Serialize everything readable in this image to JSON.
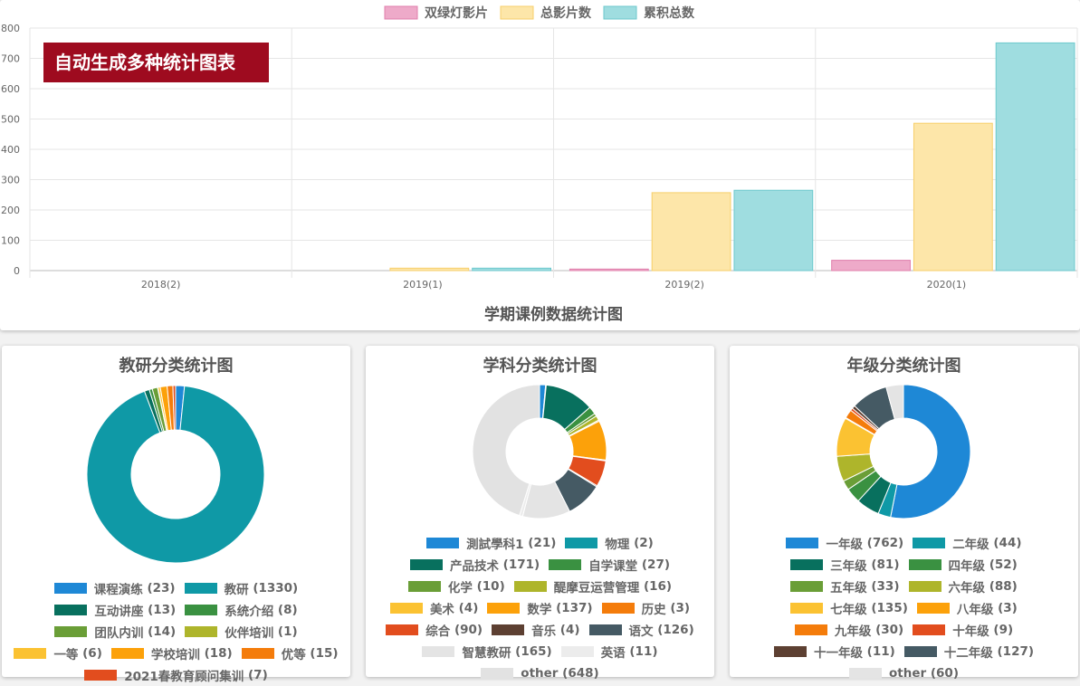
{
  "badge": "自动生成多种统计图表",
  "chart_data": [
    {
      "type": "bar",
      "title": "学期课例数据统计图",
      "categories": [
        "2018(2)",
        "2019(1)",
        "2019(2)",
        "2020(1)"
      ],
      "series": [
        {
          "name": "双绿灯影片",
          "color": "#eeaac9",
          "border": "#e07fac",
          "values": [
            0,
            0,
            5,
            34
          ]
        },
        {
          "name": "总影片数",
          "color": "#fde6a9",
          "border": "#f7cf6a",
          "values": [
            0,
            8,
            257,
            486
          ]
        },
        {
          "name": "累积总数",
          "color": "#9fdde0",
          "border": "#6cc8cd",
          "values": [
            0,
            8,
            265,
            751
          ]
        }
      ],
      "ylim": [
        0,
        800
      ],
      "yticks": [
        0,
        100,
        200,
        300,
        400,
        500,
        600,
        700,
        800
      ],
      "grid": true
    },
    {
      "type": "donut",
      "title": "教研分类统计图",
      "categories": [
        "课程演练",
        "教研",
        "互动讲座",
        "系统介绍",
        "团队内训",
        "伙伴培训",
        "一等",
        "学校培训",
        "优等",
        "2021春教育顾问集训"
      ],
      "values": [
        23,
        1330,
        13,
        8,
        14,
        1,
        6,
        18,
        15,
        7
      ],
      "value_labels": [
        "(23)",
        "(1330)",
        "(13)",
        "(8)",
        "(14)",
        "(1)",
        "(6)",
        "(18)",
        "(15)",
        "(7)"
      ],
      "colors": [
        "#1e88d6",
        "#0f99a6",
        "#08705e",
        "#3a9141",
        "#6a9e37",
        "#aeb52b",
        "#fbc232",
        "#fca10a",
        "#f47c0b",
        "#e24d1e"
      ]
    },
    {
      "type": "donut",
      "title": "学科分类统计图",
      "categories": [
        "測試學科1",
        "物理",
        "产品技术",
        "自学课堂",
        "化学",
        "醍摩豆运营管理",
        "美术",
        "数学",
        "历史",
        "综合",
        "音乐",
        "语文",
        "智慧教研",
        "英语",
        "other"
      ],
      "values": [
        21,
        2,
        171,
        27,
        10,
        16,
        4,
        137,
        3,
        90,
        4,
        126,
        165,
        11,
        648
      ],
      "value_labels": [
        "(21)",
        "(2)",
        "(171)",
        "(27)",
        "(10)",
        "(16)",
        "(4)",
        "(137)",
        "(3)",
        "(90)",
        "(4)",
        "(126)",
        "(165)",
        "(11)",
        "(648)"
      ],
      "colors": [
        "#1e88d6",
        "#0f99a6",
        "#08705e",
        "#3a9141",
        "#6a9e37",
        "#aeb52b",
        "#fbc232",
        "#fca10a",
        "#f47c0b",
        "#e24d1e",
        "#5d4032",
        "#455a64",
        "#e4e4e4",
        "#ececec",
        "#e2e2e2"
      ]
    },
    {
      "type": "donut",
      "title": "年级分类统计图",
      "categories": [
        "一年级",
        "二年级",
        "三年级",
        "四年级",
        "五年级",
        "六年级",
        "七年级",
        "八年级",
        "九年级",
        "十年级",
        "十一年级",
        "十二年级",
        "other"
      ],
      "values": [
        762,
        44,
        81,
        52,
        33,
        88,
        135,
        3,
        30,
        9,
        11,
        127,
        60
      ],
      "value_labels": [
        "(762)",
        "(44)",
        "(81)",
        "(52)",
        "(33)",
        "(88)",
        "(135)",
        "(3)",
        "(30)",
        "(9)",
        "(11)",
        "(127)",
        "(60)"
      ],
      "colors": [
        "#1e88d6",
        "#0f99a6",
        "#08705e",
        "#3a9141",
        "#6a9e37",
        "#aeb52b",
        "#fbc232",
        "#fca10a",
        "#f47c0b",
        "#e24d1e",
        "#5d4032",
        "#455a64",
        "#e4e4e4"
      ]
    }
  ]
}
